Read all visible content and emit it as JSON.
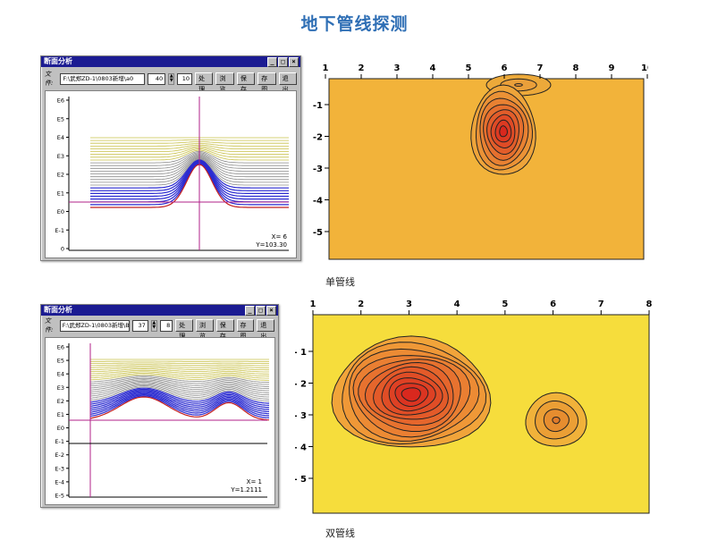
{
  "page": {
    "title": "地下管线探测"
  },
  "single": {
    "caption": "单管线",
    "window": {
      "title": "断面分析",
      "file_label": "文件:",
      "file_value": "F:\\武郑ZD-1\\0803新增\\a0",
      "spin_value": "40",
      "step_value": "10",
      "buttons": [
        "处理",
        "浏览",
        "保存",
        "存图",
        "退出"
      ],
      "y_ticks": [
        "E6",
        "E5",
        "E4",
        "E3",
        "E2",
        "E1",
        "E0",
        "E-1",
        "0"
      ],
      "readout_x": "X= 6",
      "readout_y": "Y=103.30"
    },
    "map": {
      "x_ticks": [
        "1",
        "2",
        "3",
        "4",
        "5",
        "6",
        "7",
        "8",
        "9",
        "10"
      ],
      "y_ticks": [
        "-1",
        "-2",
        "-3",
        "-4",
        "-5"
      ],
      "fill_color": "#f2b33a",
      "anomaly_color": "#d9281e"
    }
  },
  "double": {
    "caption": "双管线",
    "window": {
      "title": "断面分析",
      "file_label": "文件:",
      "file_value": "F:\\武郑ZD-1\\0803新增\\B0",
      "spin_value": "37",
      "step_value": "8",
      "buttons": [
        "处理",
        "浏览",
        "保存",
        "存图",
        "退出"
      ],
      "y_ticks": [
        "E6",
        "E5",
        "E4",
        "E3",
        "E2",
        "E1",
        "E0",
        "E-1",
        "E-2",
        "E-3",
        "E-4",
        "E-5"
      ],
      "readout_x": "X= 1",
      "readout_y": "Y=1.2111"
    },
    "map": {
      "x_ticks": [
        "1",
        "2",
        "3",
        "4",
        "5",
        "6",
        "7",
        "8"
      ],
      "y_ticks": [
        "- 1",
        "- 2",
        "- 3",
        "- 4",
        "- 5"
      ],
      "fill_color": "#f6dd3c",
      "anomaly_color": "#d9281e"
    }
  }
}
